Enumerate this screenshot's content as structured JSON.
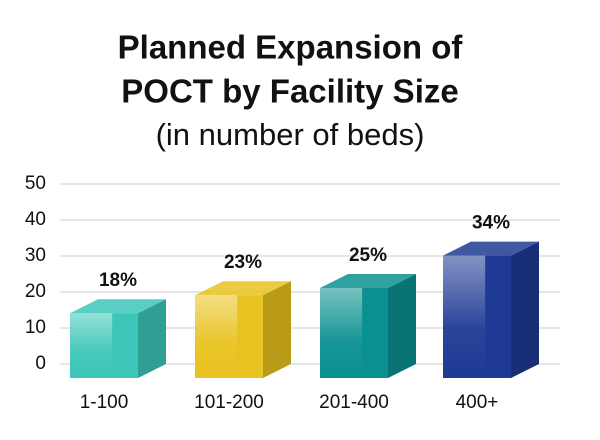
{
  "chart_data": {
    "type": "bar3d",
    "title": [
      "Planned Expansion of",
      "POCT by Facility Size"
    ],
    "subtitle": "(in number of beds)",
    "categories": [
      "1-100",
      "101-200",
      "201-400",
      "400+"
    ],
    "values": [
      18,
      23,
      25,
      34
    ],
    "value_labels": [
      "18%",
      "23%",
      "25%",
      "34%"
    ],
    "colors": [
      "#3cc6b8",
      "#e8c21e",
      "#0a9090",
      "#1e3a94"
    ],
    "ylim": [
      0,
      50
    ],
    "yticks": [
      0,
      10,
      20,
      30,
      40,
      50
    ],
    "grid": true
  }
}
